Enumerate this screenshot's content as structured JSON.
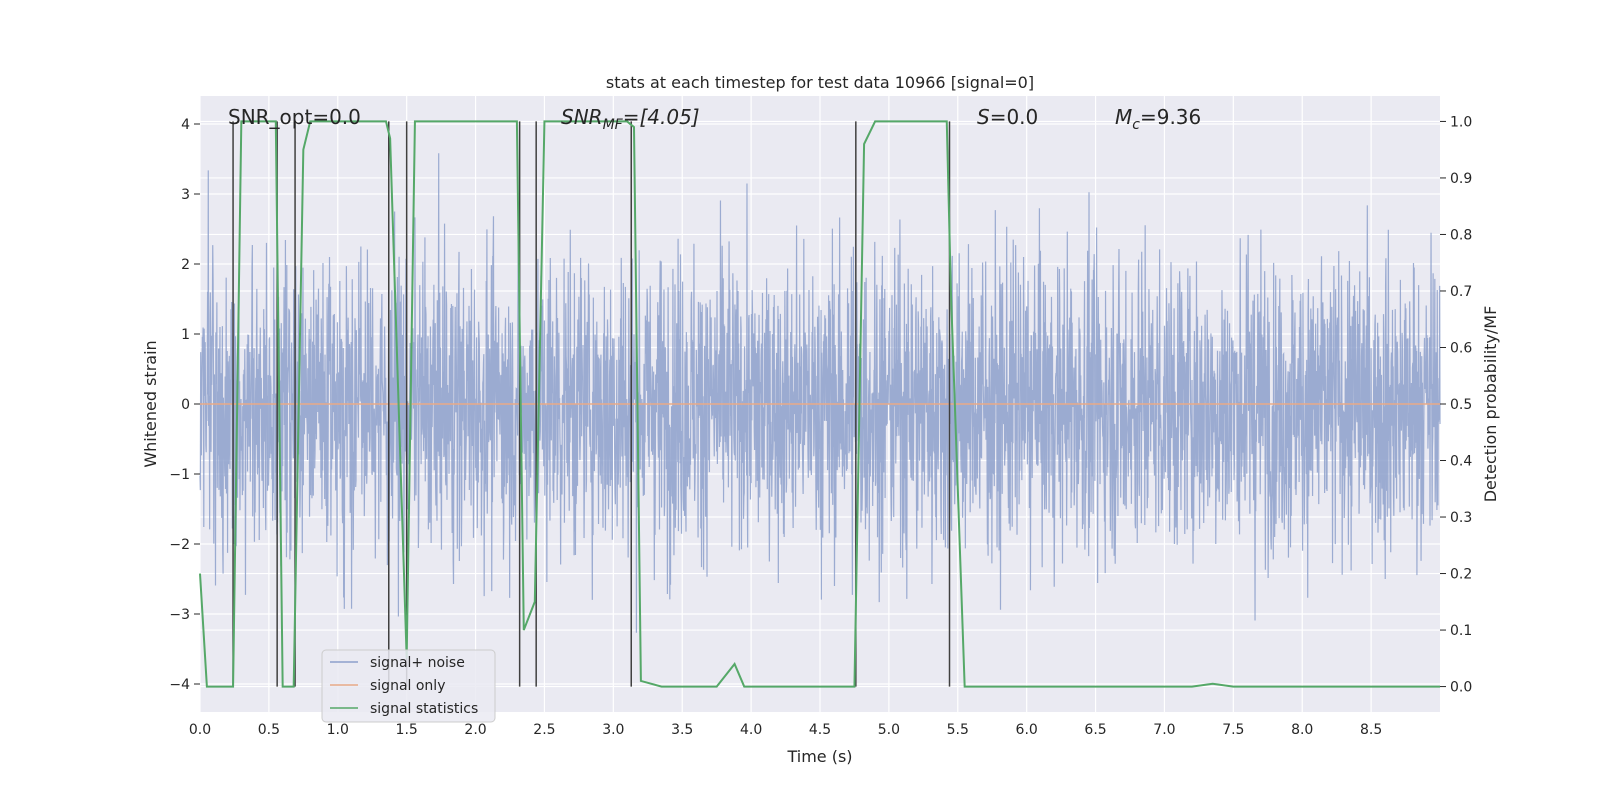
{
  "chart_data": {
    "type": "line",
    "title": "stats at each timestep for test data 10966 [signal=0]",
    "xlabel": "Time (s)",
    "ylabel": "Whitened strain",
    "y2label": "Detection probability/MF",
    "xlim": [
      0.0,
      9.0
    ],
    "ylim": [
      -4.4,
      4.4
    ],
    "y2lim": [
      -0.045,
      1.045
    ],
    "xticks": [
      0.0,
      0.5,
      1.0,
      1.5,
      2.0,
      2.5,
      3.0,
      3.5,
      4.0,
      4.5,
      5.0,
      5.5,
      6.0,
      6.5,
      7.0,
      7.5,
      8.0,
      8.5
    ],
    "xtick_labels": [
      "0.0",
      "0.5",
      "1.0",
      "1.5",
      "2.0",
      "2.5",
      "3.0",
      "3.5",
      "4.0",
      "4.5",
      "5.0",
      "5.5",
      "6.0",
      "6.5",
      "7.0",
      "7.5",
      "8.0",
      "8.5"
    ],
    "yticks": [
      -4,
      -3,
      -2,
      -1,
      0,
      1,
      2,
      3,
      4
    ],
    "ytick_labels": [
      "−4",
      "−3",
      "−2",
      "−1",
      "0",
      "1",
      "2",
      "3",
      "4"
    ],
    "y2ticks": [
      0.0,
      0.1,
      0.2,
      0.3,
      0.4,
      0.5,
      0.6,
      0.7,
      0.8,
      0.9,
      1.0
    ],
    "y2tick_labels": [
      "0.0",
      "0.1",
      "0.2",
      "0.3",
      "0.4",
      "0.5",
      "0.6",
      "0.7",
      "0.8",
      "0.9",
      "1.0"
    ],
    "legend_position": "lower-left",
    "annotations": {
      "snr_opt": "SNR_opt=0.0",
      "snr_mf_main": "SNR",
      "snr_mf_sub": "MF",
      "snr_mf_value": "=[4.05]",
      "s_main": "S",
      "s_value": "=0.0",
      "mc_main": "M",
      "mc_sub": "c",
      "mc_value": "=9.36"
    },
    "series": [
      {
        "name": "signal+ noise",
        "color": "#8da0cb",
        "axis": "left",
        "description": "whitened strain noise, approx. zero-mean, amplitude mostly within ±2.5, peaks near ±4"
      },
      {
        "name": "signal only",
        "color": "#e8a987",
        "axis": "left",
        "x": [
          0.0,
          9.0
        ],
        "y": [
          0.0,
          0.0
        ]
      },
      {
        "name": "signal statistics",
        "color": "#55a868",
        "axis": "right",
        "x": [
          0.0,
          0.05,
          0.24,
          0.3,
          0.55,
          0.6,
          0.68,
          0.75,
          0.8,
          1.35,
          1.38,
          1.5,
          1.56,
          2.3,
          2.35,
          2.43,
          2.5,
          3.1,
          3.15,
          3.2,
          3.35,
          3.55,
          3.75,
          3.88,
          3.95,
          4.75,
          4.82,
          4.9,
          5.42,
          5.45,
          5.55,
          7.2,
          7.35,
          7.5,
          9.0
        ],
        "y": [
          0.2,
          0.0,
          0.0,
          1.0,
          1.0,
          0.0,
          0.0,
          0.95,
          1.0,
          1.0,
          0.97,
          0.05,
          1.0,
          1.0,
          0.1,
          0.15,
          1.0,
          1.0,
          0.99,
          0.01,
          0.0,
          0.0,
          0.0,
          0.04,
          0.0,
          0.0,
          0.96,
          1.0,
          1.0,
          0.7,
          0.0,
          0.0,
          0.005,
          0.0,
          0.0
        ]
      }
    ],
    "vertical_markers": {
      "color": "#404040",
      "segments": [
        {
          "x": 0.24,
          "from": 0.0,
          "to": 1.0
        },
        {
          "x": 0.56,
          "from": 0.0,
          "to": 1.0
        },
        {
          "x": 0.69,
          "from": 0.0,
          "to": 1.0
        },
        {
          "x": 1.37,
          "from": 0.0,
          "to": 1.0
        },
        {
          "x": 1.5,
          "from": 0.0,
          "to": 1.0
        },
        {
          "x": 2.32,
          "from": 0.0,
          "to": 1.0
        },
        {
          "x": 2.44,
          "from": 0.0,
          "to": 1.0
        },
        {
          "x": 3.13,
          "from": 0.0,
          "to": 1.0
        },
        {
          "x": 4.76,
          "from": 0.0,
          "to": 1.0
        },
        {
          "x": 5.44,
          "from": 0.0,
          "to": 1.0
        }
      ]
    }
  }
}
